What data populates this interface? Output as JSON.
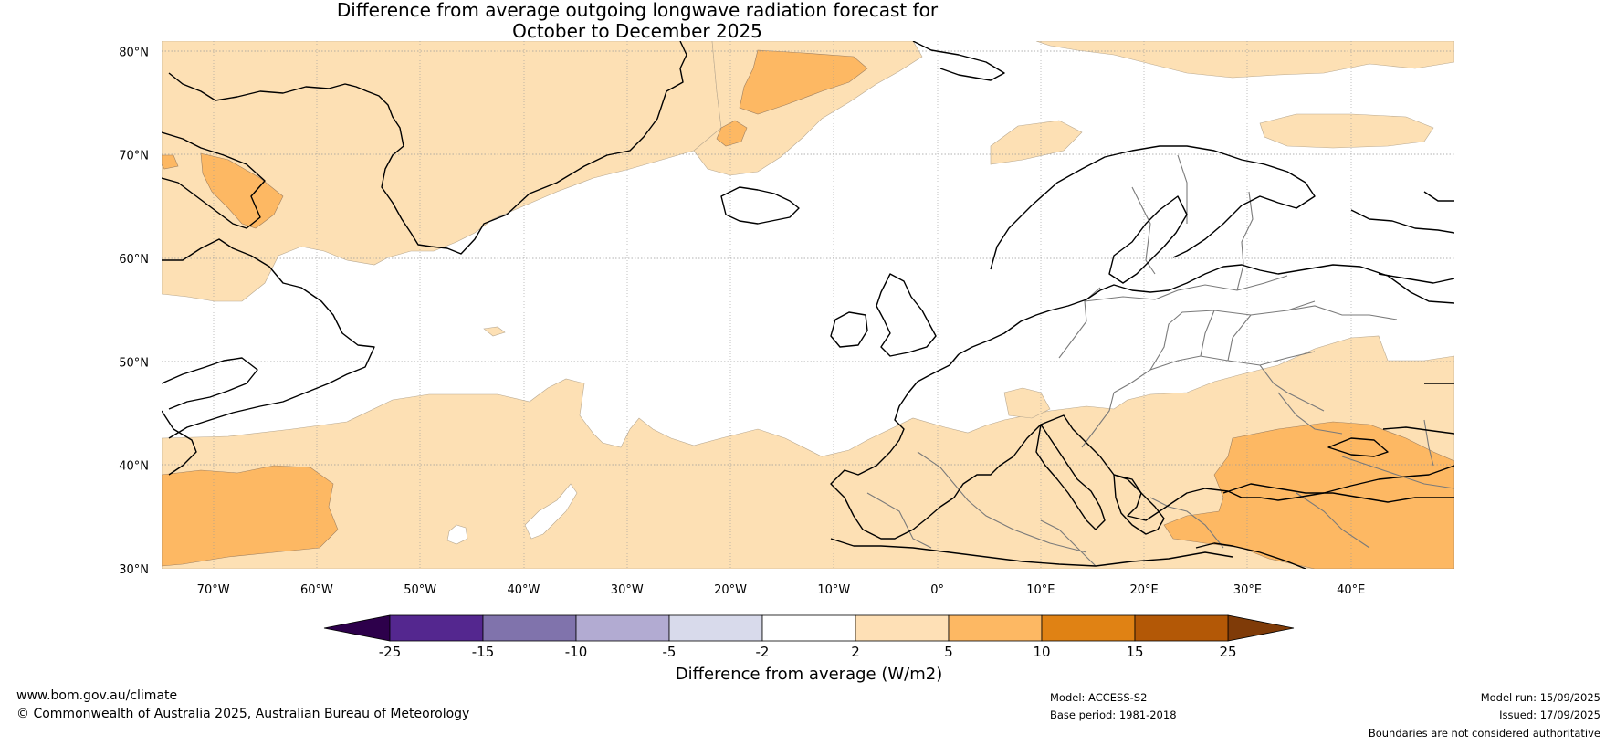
{
  "title_line1": "Difference from average outgoing longwave radiation forecast for",
  "title_line2": "October to December 2025",
  "map": {
    "projection": "equirectangular",
    "lon_range": [
      -75,
      50
    ],
    "lat_range": [
      30,
      81
    ],
    "lat_ticks": [
      {
        "value": 80,
        "label": "80°N"
      },
      {
        "value": 70,
        "label": "70°N"
      },
      {
        "value": 60,
        "label": "60°N"
      },
      {
        "value": 50,
        "label": "50°N"
      },
      {
        "value": 40,
        "label": "40°N"
      },
      {
        "value": 30,
        "label": "30°N"
      }
    ],
    "lon_ticks": [
      {
        "value": -70,
        "label": "70°W"
      },
      {
        "value": -60,
        "label": "60°W"
      },
      {
        "value": -50,
        "label": "50°W"
      },
      {
        "value": -40,
        "label": "40°W"
      },
      {
        "value": -30,
        "label": "30°W"
      },
      {
        "value": -20,
        "label": "20°W"
      },
      {
        "value": -10,
        "label": "10°W"
      },
      {
        "value": 0,
        "label": "0°"
      },
      {
        "value": 10,
        "label": "10°E"
      },
      {
        "value": 20,
        "label": "20°E"
      },
      {
        "value": 30,
        "label": "30°E"
      },
      {
        "value": 40,
        "label": "40°E"
      }
    ],
    "colors": {
      "anomaly_2_5": "#fde0b4",
      "anomaly_5_10": "#fdb863",
      "coastline": "#000000",
      "borders": "#777777"
    }
  },
  "colorbar": {
    "title": "Difference from average (W/m2)",
    "bins": [
      {
        "from": -25,
        "to": -15,
        "color": "#54278f"
      },
      {
        "from": -15,
        "to": -10,
        "color": "#8073ac"
      },
      {
        "from": -10,
        "to": -5,
        "color": "#b2abd2"
      },
      {
        "from": -5,
        "to": -2,
        "color": "#d8daeb"
      },
      {
        "from": -2,
        "to": 2,
        "color": "#ffffff"
      },
      {
        "from": 2,
        "to": 5,
        "color": "#fee0b6"
      },
      {
        "from": 5,
        "to": 10,
        "color": "#fdb863"
      },
      {
        "from": 10,
        "to": 15,
        "color": "#e08214"
      },
      {
        "from": 15,
        "to": 25,
        "color": "#b35806"
      }
    ],
    "under_color": "#2d004b",
    "over_color": "#7f3b08",
    "tick_labels": [
      "-25",
      "-15",
      "-10",
      "-5",
      "-2",
      "2",
      "5",
      "10",
      "15",
      "25"
    ]
  },
  "footer": {
    "website": "www.bom.gov.au/climate",
    "copyright": "© Commonwealth of Australia 2025, Australian Bureau of Meteorology",
    "model": "Model: ACCESS-S2",
    "base_period": "Base period: 1981-2018",
    "model_run": "Model run: 15/09/2025",
    "issued": "Issued: 17/09/2025",
    "disclaimer": "Boundaries are not considered authoritative"
  }
}
